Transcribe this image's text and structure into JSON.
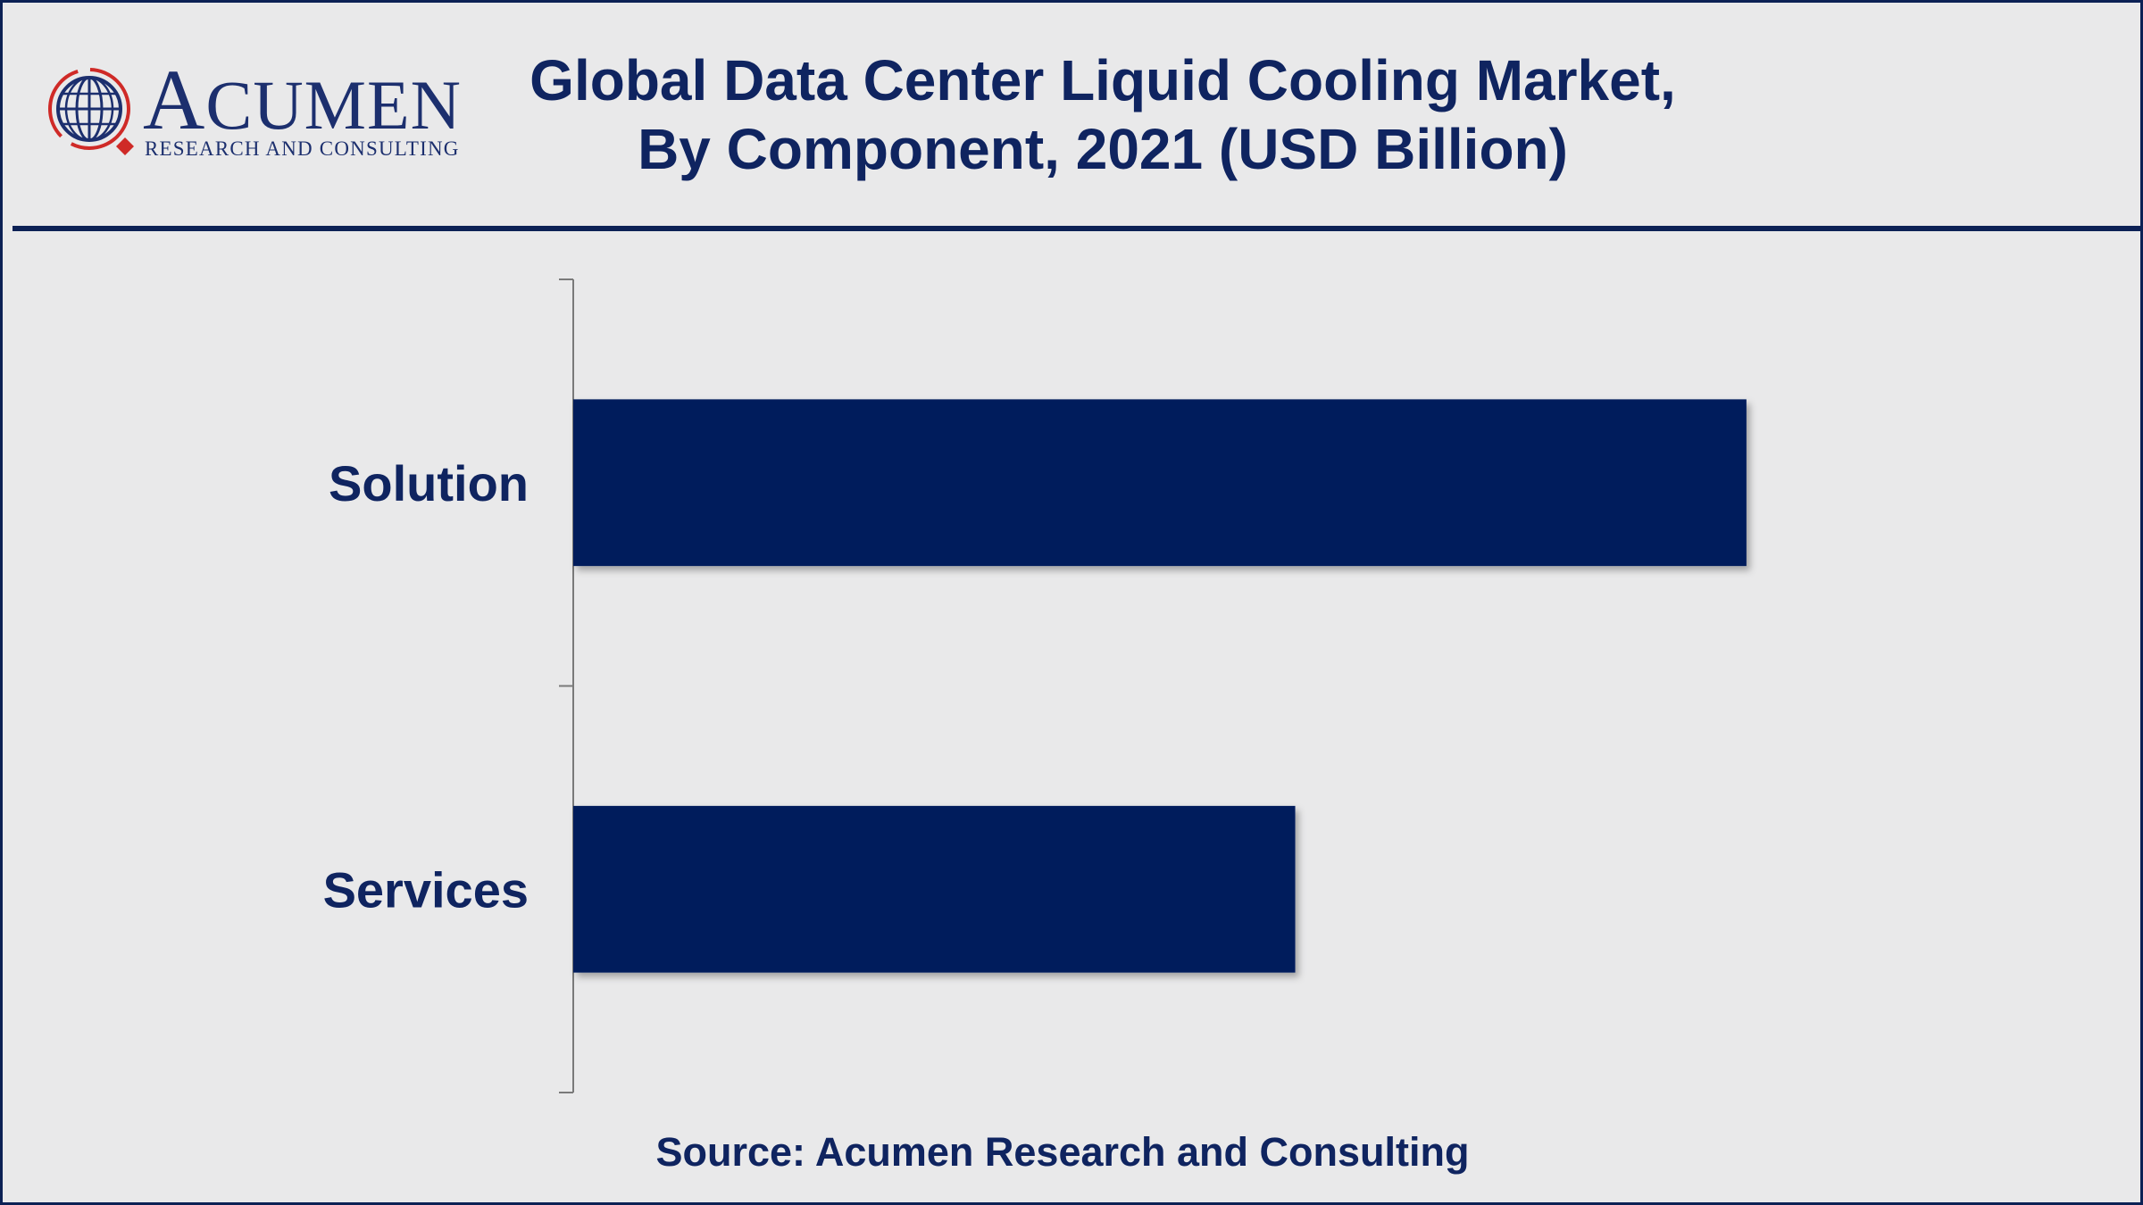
{
  "header": {
    "title_line1": "Global Data Center Liquid Cooling Market,",
    "title_line2": "By Component, 2021 (USD Billion)"
  },
  "logo": {
    "name": "ACUMEN",
    "tagline": "RESEARCH AND CONSULTING",
    "icon": "globe-icon"
  },
  "chart_data": {
    "type": "bar",
    "orientation": "horizontal",
    "title": "Global Data Center Liquid Cooling Market, By Component, 2021 (USD Billion)",
    "xlabel": "",
    "ylabel": "",
    "categories": [
      "Solution",
      "Services"
    ],
    "values": [
      1.3,
      0.8
    ],
    "xlim": [
      0,
      1.5
    ],
    "grid": false,
    "legend": "none",
    "bar_color": "#001e5c"
  },
  "footer": {
    "source": "Source: Acumen Research and Consulting"
  },
  "colors": {
    "background": "#e9e9ea",
    "navy": "#0f2460",
    "bar": "#001e5c",
    "logo_red": "#cf2a27"
  }
}
